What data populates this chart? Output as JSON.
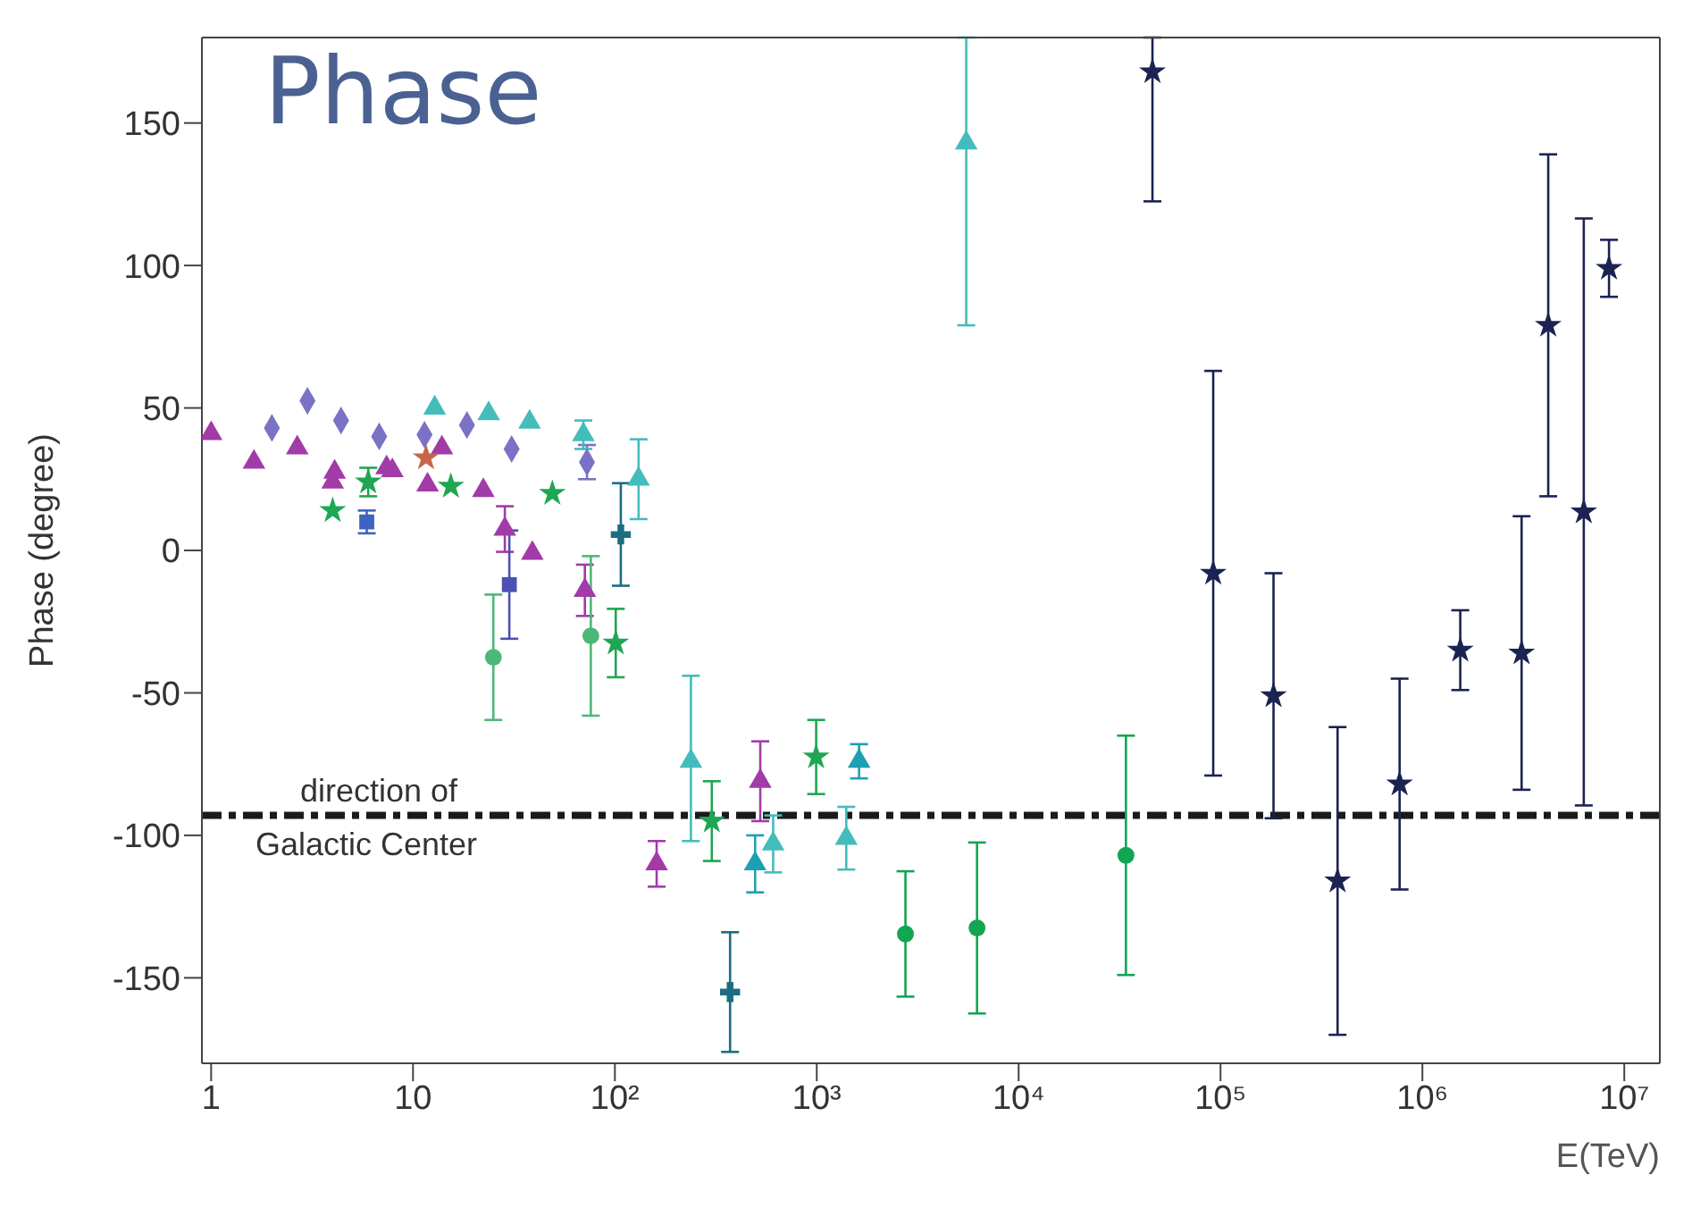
{
  "chart_data": {
    "type": "scatter",
    "title": "Phase",
    "xlabel": "E(TeV)",
    "ylabel": "Phase (degree)",
    "log": "x",
    "grid": false,
    "xlim": [
      0.9,
      15000000
    ],
    "xticks": [
      1,
      10,
      {
        "value": 100,
        "label": "10²"
      },
      {
        "value": 1000,
        "label": "10³"
      },
      {
        "value": 10000,
        "label": "10⁴"
      },
      {
        "value": 100000,
        "label": "10⁵"
      },
      {
        "value": 1000000,
        "label": "10⁶"
      },
      {
        "value": 10000000,
        "label": "10⁷"
      }
    ],
    "ylim": [
      -180,
      180
    ],
    "yticks": [
      -150,
      -100,
      -50,
      0,
      50,
      100,
      150
    ],
    "ref_lines": [
      {
        "axis": "y",
        "value": -93,
        "label": "direction of Galactic Center",
        "color": "#1a1a1a",
        "line_style": "dashed"
      }
    ],
    "series": [
      {
        "color": "#a23ba8",
        "marker": "triangle",
        "x": [
          1,
          1.63,
          2.67,
          4.09,
          4.0,
          7.4,
          7.9,
          11.8,
          13.9,
          22.3,
          28.5,
          39,
          71,
          161,
          525
        ],
        "values": [
          41,
          31,
          36,
          27.5,
          24,
          29,
          28,
          23,
          36,
          21,
          7.5,
          -1,
          -14,
          -110,
          -81
        ],
        "errors": [
          null,
          null,
          null,
          null,
          null,
          null,
          null,
          null,
          null,
          null,
          8,
          null,
          9,
          8,
          14
        ]
      },
      {
        "color": "#7a72c4",
        "marker": "diamond",
        "x": [
          2.0,
          3.0,
          4.4,
          6.8,
          11.4,
          18.5,
          30.8,
          72.7
        ],
        "values": [
          43,
          52.5,
          45.6,
          40,
          40.6,
          44,
          35.6,
          31
        ],
        "errors": [
          null,
          null,
          null,
          null,
          null,
          null,
          null,
          6
        ]
      },
      {
        "color": "#45bcbc",
        "marker": "triangle",
        "x": [
          12.8,
          23.7,
          37.8,
          69.8,
          131,
          238,
          608,
          1400,
          5500
        ],
        "values": [
          50,
          48,
          45,
          40.6,
          25,
          -74,
          -103,
          -101,
          143
        ],
        "errors": [
          null,
          null,
          null,
          5,
          14,
          [
            -102,
            -44
          ],
          10,
          11,
          [
            79,
            180
          ]
        ]
      },
      {
        "color": "#1fa653",
        "marker": "star",
        "x": [
          4.0,
          6.0,
          15.4,
          49,
          101,
          302,
          993
        ],
        "values": [
          14,
          24,
          22.5,
          20,
          -32.5,
          -95,
          -72.5
        ],
        "errors": [
          null,
          5,
          null,
          null,
          12,
          14,
          13
        ]
      },
      {
        "color": "#c8644a",
        "marker": "star",
        "x": [
          11.6
        ],
        "values": [
          32.5
        ]
      },
      {
        "color": "#3f63c0",
        "marker": "square",
        "x": [
          5.9
        ],
        "values": [
          10
        ],
        "errors": [
          4
        ]
      },
      {
        "color": "#4b50b4",
        "marker": "square",
        "x": [
          30
        ],
        "values": [
          -12
        ],
        "errors": [
          19
        ]
      },
      {
        "color": "#4cb878",
        "marker": "circle",
        "x": [
          25,
          76
        ],
        "values": [
          -37.5,
          -30
        ],
        "errors": [
          22,
          28
        ]
      },
      {
        "color": "#1d6d82",
        "marker": "cross",
        "x": [
          107,
          372
        ],
        "values": [
          5.6,
          -155
        ],
        "errors": [
          18,
          21
        ]
      },
      {
        "color": "#1f9fb3",
        "marker": "triangle",
        "x": [
          495,
          1620
        ],
        "values": [
          -110,
          -74
        ],
        "errors": [
          10,
          6
        ]
      },
      {
        "color": "#12a552",
        "marker": "circle",
        "x": [
          2750,
          6220,
          34000
        ],
        "values": [
          -134.6,
          -132.5,
          -107
        ],
        "errors": [
          22,
          30,
          42
        ]
      },
      {
        "color": "#1b2352",
        "marker": "star",
        "x": [
          46000,
          92000,
          183000,
          380000,
          771000,
          1540000,
          3100000,
          4200000,
          6300000,
          8400000
        ],
        "values": [
          168,
          -8,
          -51,
          -116,
          -82,
          -35,
          -36,
          79,
          13.5,
          99
        ],
        "errors": [
          [
            122.5,
            180
          ],
          71,
          43,
          54,
          37,
          14,
          48,
          60,
          103,
          10
        ]
      }
    ]
  }
}
